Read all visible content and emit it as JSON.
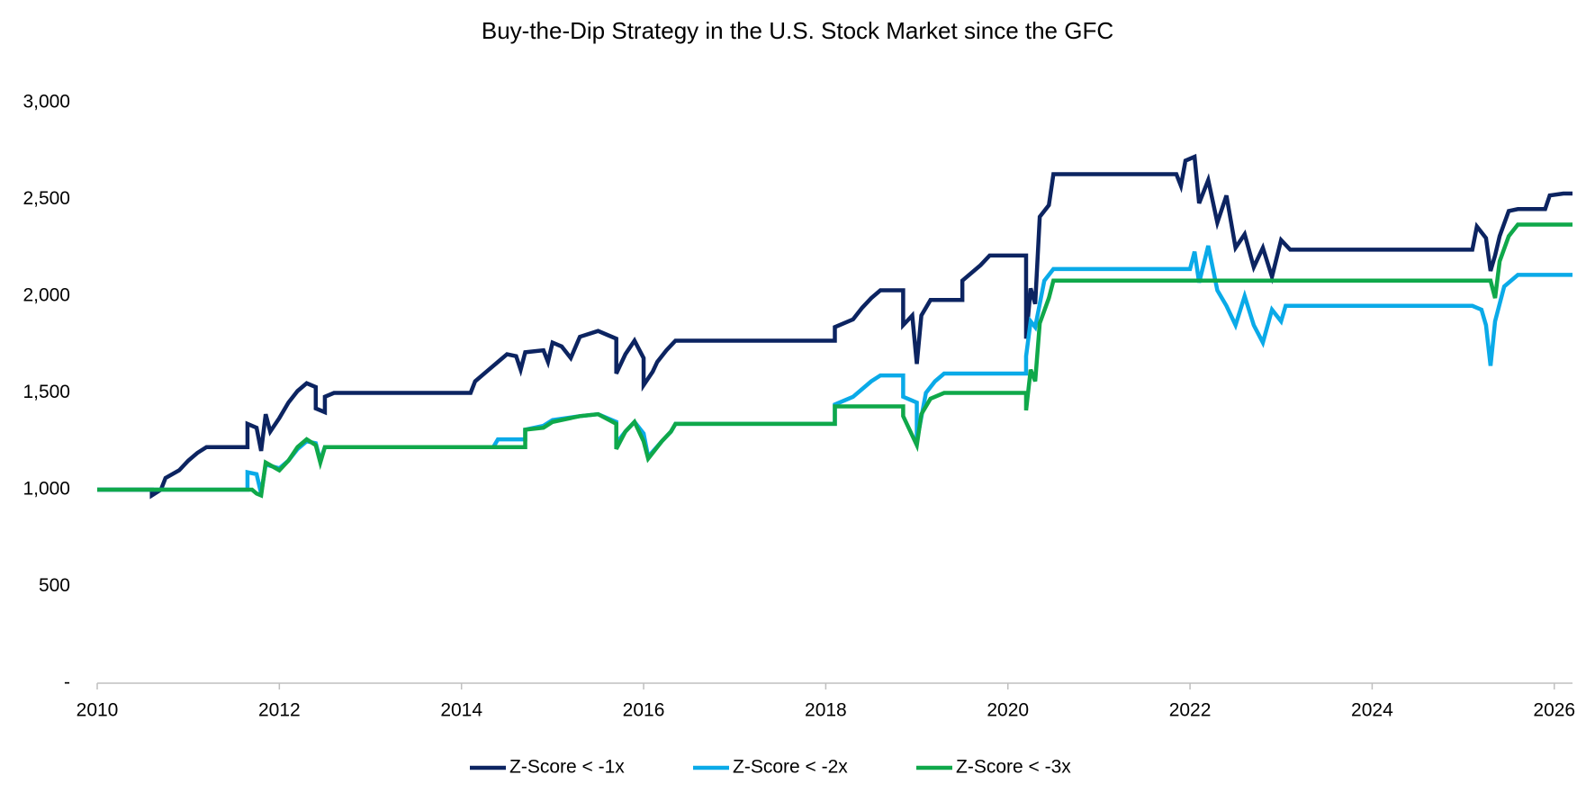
{
  "chart_data": {
    "type": "line",
    "title": "Buy-the-Dip Strategy in the U.S. Stock Market since the GFC",
    "xlim": [
      2010,
      2026.2
    ],
    "xticks": [
      2010,
      2012,
      2014,
      2016,
      2018,
      2020,
      2022,
      2024,
      2026
    ],
    "ylim": [
      0,
      3000
    ],
    "yticks": [
      {
        "value": 0,
        "label": "-"
      },
      500,
      {
        "value": 1000,
        "label": "1,000"
      },
      {
        "value": 1500,
        "label": "1,500"
      },
      {
        "value": 2000,
        "label": "2,000"
      },
      {
        "value": 2500,
        "label": "2,500"
      },
      {
        "value": 3000,
        "label": "3,000"
      }
    ],
    "grid": false,
    "legend": "bottom",
    "series": [
      {
        "name": "Z-Score < -1x",
        "color": "#0c2461",
        "x": [
          2010.0,
          2010.6,
          2010.6,
          2010.7,
          2010.75,
          2010.9,
          2011.0,
          2011.1,
          2011.2,
          2011.65,
          2011.65,
          2011.75,
          2011.8,
          2011.85,
          2011.9,
          2012.0,
          2012.1,
          2012.2,
          2012.3,
          2012.4,
          2012.4,
          2012.5,
          2012.5,
          2012.6,
          2014.1,
          2014.15,
          2014.3,
          2014.4,
          2014.5,
          2014.6,
          2014.65,
          2014.7,
          2014.9,
          2014.95,
          2015.0,
          2015.1,
          2015.2,
          2015.3,
          2015.5,
          2015.6,
          2015.7,
          2015.7,
          2015.8,
          2015.9,
          2016.0,
          2016.0,
          2016.1,
          2016.15,
          2016.25,
          2016.35,
          2018.1,
          2018.1,
          2018.3,
          2018.4,
          2018.5,
          2018.6,
          2018.85,
          2018.85,
          2018.95,
          2019.0,
          2019.05,
          2019.15,
          2019.5,
          2019.5,
          2019.7,
          2019.8,
          2020.2,
          2020.2,
          2020.25,
          2020.3,
          2020.35,
          2020.45,
          2020.5,
          2021.85,
          2021.9,
          2021.95,
          2022.05,
          2022.1,
          2022.2,
          2022.3,
          2022.4,
          2022.5,
          2022.6,
          2022.7,
          2022.8,
          2022.9,
          2023.0,
          2023.1,
          2025.1,
          2025.15,
          2025.25,
          2025.3,
          2025.35,
          2025.4,
          2025.5,
          2025.6,
          2025.9,
          2025.95,
          2026.1,
          2026.2
        ],
        "values": [
          1000,
          1000,
          970,
          1000,
          1060,
          1100,
          1150,
          1190,
          1220,
          1220,
          1340,
          1320,
          1200,
          1390,
          1300,
          1370,
          1450,
          1510,
          1550,
          1530,
          1420,
          1400,
          1480,
          1500,
          1500,
          1560,
          1620,
          1660,
          1700,
          1690,
          1620,
          1710,
          1720,
          1660,
          1760,
          1740,
          1680,
          1790,
          1820,
          1800,
          1780,
          1600,
          1700,
          1770,
          1680,
          1540,
          1610,
          1660,
          1720,
          1770,
          1770,
          1840,
          1880,
          1940,
          1990,
          2030,
          2030,
          1850,
          1900,
          1650,
          1900,
          1980,
          1980,
          2080,
          2160,
          2210,
          2210,
          1780,
          2040,
          1960,
          2410,
          2470,
          2630,
          2630,
          2570,
          2700,
          2720,
          2480,
          2600,
          2380,
          2520,
          2250,
          2320,
          2150,
          2250,
          2100,
          2290,
          2240,
          2240,
          2360,
          2300,
          2130,
          2210,
          2310,
          2440,
          2450,
          2450,
          2520,
          2530,
          2530
        ]
      },
      {
        "name": "Z-Score < -2x",
        "color": "#0aaae8",
        "x": [
          2010.0,
          2011.65,
          2011.65,
          2011.75,
          2011.8,
          2011.85,
          2012.0,
          2012.1,
          2012.2,
          2012.3,
          2012.4,
          2012.45,
          2012.5,
          2014.35,
          2014.4,
          2014.7,
          2014.7,
          2014.9,
          2015.0,
          2015.3,
          2015.5,
          2015.7,
          2015.7,
          2015.8,
          2015.9,
          2016.0,
          2016.05,
          2016.2,
          2016.3,
          2016.35,
          2018.1,
          2018.1,
          2018.3,
          2018.5,
          2018.6,
          2018.85,
          2018.85,
          2019.0,
          2019.0,
          2019.1,
          2019.2,
          2019.3,
          2020.2,
          2020.2,
          2020.25,
          2020.3,
          2020.4,
          2020.5,
          2022.0,
          2022.05,
          2022.1,
          2022.2,
          2022.3,
          2022.4,
          2022.5,
          2022.6,
          2022.7,
          2022.8,
          2022.9,
          2023.0,
          2023.05,
          2025.1,
          2025.2,
          2025.25,
          2025.3,
          2025.35,
          2025.45,
          2025.6,
          2026.2
        ],
        "values": [
          1000,
          1000,
          1090,
          1080,
          980,
          1130,
          1110,
          1150,
          1210,
          1250,
          1240,
          1150,
          1220,
          1220,
          1260,
          1260,
          1310,
          1330,
          1360,
          1380,
          1390,
          1350,
          1240,
          1300,
          1350,
          1290,
          1170,
          1250,
          1300,
          1340,
          1340,
          1440,
          1480,
          1560,
          1590,
          1590,
          1480,
          1450,
          1250,
          1500,
          1560,
          1600,
          1600,
          1690,
          1870,
          1840,
          2080,
          2140,
          2140,
          2230,
          2070,
          2260,
          2030,
          1950,
          1850,
          2000,
          1850,
          1760,
          1930,
          1870,
          1950,
          1950,
          1930,
          1850,
          1640,
          1870,
          2050,
          2110,
          2110
        ]
      },
      {
        "name": "Z-Score < -3x",
        "color": "#0fa84a",
        "x": [
          2010.0,
          2011.7,
          2011.75,
          2011.8,
          2011.85,
          2012.0,
          2012.1,
          2012.2,
          2012.3,
          2012.4,
          2012.45,
          2012.5,
          2014.7,
          2014.7,
          2014.9,
          2015.0,
          2015.3,
          2015.5,
          2015.7,
          2015.7,
          2015.8,
          2015.9,
          2016.0,
          2016.05,
          2016.2,
          2016.3,
          2016.35,
          2018.1,
          2018.1,
          2018.85,
          2018.85,
          2019.0,
          2019.05,
          2019.15,
          2019.3,
          2020.2,
          2020.2,
          2020.25,
          2020.3,
          2020.35,
          2020.45,
          2020.5,
          2025.3,
          2025.35,
          2025.4,
          2025.5,
          2025.6,
          2026.2
        ],
        "values": [
          1000,
          1000,
          980,
          970,
          1140,
          1100,
          1150,
          1220,
          1260,
          1230,
          1140,
          1220,
          1220,
          1310,
          1320,
          1350,
          1380,
          1390,
          1340,
          1210,
          1300,
          1350,
          1250,
          1160,
          1250,
          1300,
          1340,
          1340,
          1430,
          1430,
          1380,
          1230,
          1390,
          1470,
          1500,
          1500,
          1410,
          1620,
          1560,
          1860,
          1990,
          2080,
          2080,
          1990,
          2180,
          2310,
          2370,
          2370
        ]
      }
    ]
  }
}
